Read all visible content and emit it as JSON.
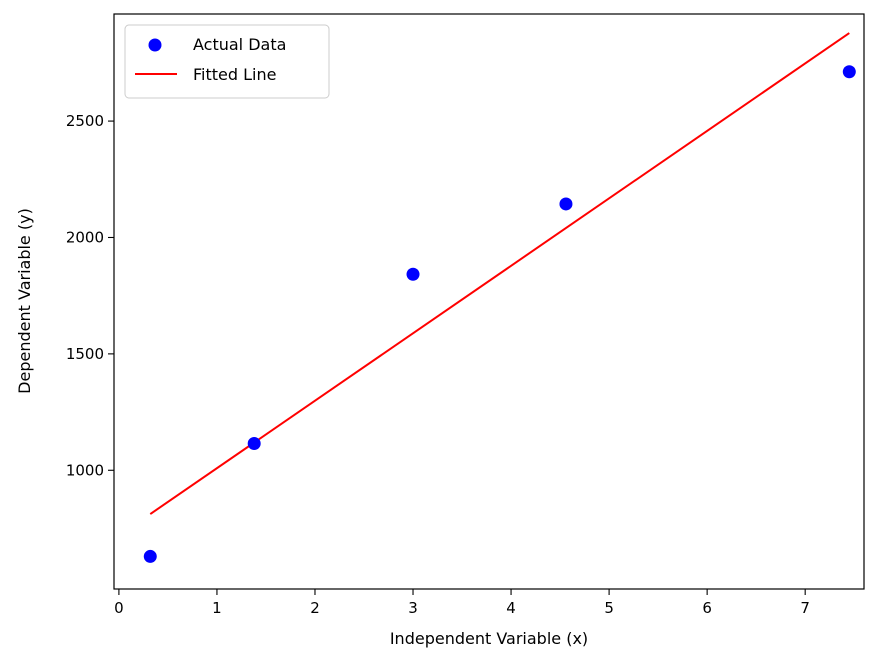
{
  "chart_data": {
    "type": "scatter",
    "title": "",
    "xlabel": "Independent Variable (x)",
    "ylabel": "Dependent Variable (y)",
    "xlim": [
      -0.05,
      7.6
    ],
    "ylim": [
      490,
      2960
    ],
    "xticks": [
      0,
      1,
      2,
      3,
      4,
      5,
      6,
      7
    ],
    "xtick_labels": [
      "0",
      "1",
      "2",
      "3",
      "4",
      "5",
      "6",
      "7"
    ],
    "yticks": [
      1000,
      1500,
      2000,
      2500
    ],
    "ytick_labels": [
      "1000",
      "1500",
      "2000",
      "2500"
    ],
    "grid": false,
    "legend_position": "upper-left",
    "series": [
      {
        "name": "Actual Data",
        "kind": "scatter",
        "color": "#0000ff",
        "x": [
          0.32,
          1.38,
          3.0,
          4.56,
          7.45
        ],
        "y": [
          630,
          1115,
          1842,
          2144,
          2712
        ]
      },
      {
        "name": "Fitted Line",
        "kind": "line",
        "color": "#ff0000",
        "x": [
          0.32,
          7.45
        ],
        "y": [
          812,
          2878
        ]
      }
    ]
  }
}
